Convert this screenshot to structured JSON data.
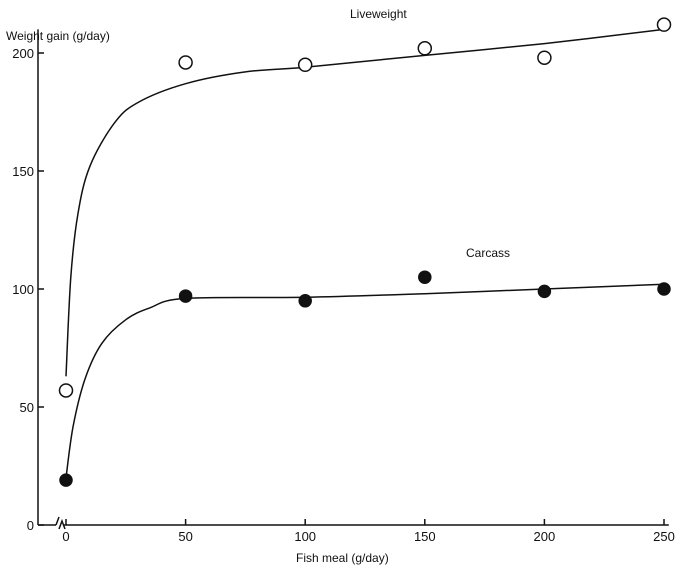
{
  "chart_data": {
    "type": "scatter",
    "ylabel": "Weight gain (g/day)",
    "xlabel": "Fish meal (g/day)",
    "x_ticks": [
      0,
      50,
      100,
      150,
      200,
      250
    ],
    "y_ticks": [
      0,
      50,
      100,
      150,
      200
    ],
    "xlim": [
      -10,
      252
    ],
    "ylim": [
      0,
      210
    ],
    "grid": false,
    "axis_break": "x-axis near 0",
    "series": [
      {
        "name": "Liveweight",
        "marker": "open-circle",
        "points": [
          {
            "x": 0,
            "y": 57
          },
          {
            "x": 50,
            "y": 196
          },
          {
            "x": 100,
            "y": 195
          },
          {
            "x": 150,
            "y": 202
          },
          {
            "x": 200,
            "y": 198
          },
          {
            "x": 250,
            "y": 212
          }
        ],
        "curve": [
          {
            "x": 0,
            "y": 63
          },
          {
            "x": 2,
            "y": 105
          },
          {
            "x": 5,
            "y": 132
          },
          {
            "x": 10,
            "y": 152
          },
          {
            "x": 20,
            "y": 170
          },
          {
            "x": 30,
            "y": 179
          },
          {
            "x": 50,
            "y": 187
          },
          {
            "x": 75,
            "y": 192
          },
          {
            "x": 100,
            "y": 194
          },
          {
            "x": 150,
            "y": 199
          },
          {
            "x": 200,
            "y": 204
          },
          {
            "x": 250,
            "y": 210
          }
        ]
      },
      {
        "name": "Carcass",
        "marker": "filled-circle",
        "points": [
          {
            "x": 0,
            "y": 19
          },
          {
            "x": 50,
            "y": 97
          },
          {
            "x": 100,
            "y": 95
          },
          {
            "x": 150,
            "y": 105
          },
          {
            "x": 200,
            "y": 99
          },
          {
            "x": 250,
            "y": 100
          }
        ],
        "curve": [
          {
            "x": 0,
            "y": 20
          },
          {
            "x": 3,
            "y": 42
          },
          {
            "x": 8,
            "y": 62
          },
          {
            "x": 15,
            "y": 77
          },
          {
            "x": 25,
            "y": 87
          },
          {
            "x": 35,
            "y": 92
          },
          {
            "x": 50,
            "y": 96
          },
          {
            "x": 100,
            "y": 96.5
          },
          {
            "x": 150,
            "y": 98
          },
          {
            "x": 200,
            "y": 100
          },
          {
            "x": 250,
            "y": 102
          }
        ]
      }
    ]
  }
}
